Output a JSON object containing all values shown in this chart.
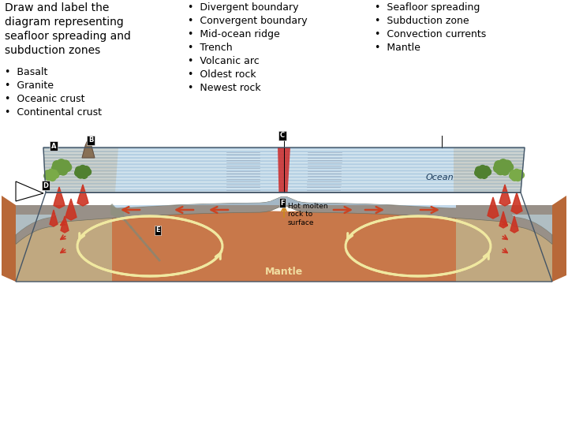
{
  "bg_color": "#ffffff",
  "title_text": "Draw and label the\ndiagram representing\nseafloor spreading and\nsubduction zones",
  "col1_bullets": [
    "Basalt",
    "Granite",
    "Oceanic crust",
    "Continental crust"
  ],
  "col2_bullets": [
    "Divergent boundary",
    "Convergent boundary",
    "Mid-ocean ridge",
    "Trench",
    "Volcanic arc",
    "Oldest rock",
    "Newest rock"
  ],
  "col3_bullets": [
    "Seafloor spreading",
    "Subduction zone",
    "Convection currents",
    "Mantle"
  ],
  "font_size_title": 10,
  "font_size_bullets": 9,
  "text_color": "#000000",
  "mantle_color": "#c8784a",
  "crust_color": "#a8a090",
  "ocean_color_light": "#b8d4e8",
  "ocean_color_dark": "#7aaec8",
  "continent_color": "#c8a878",
  "green_color": "#6a9a40",
  "red_arrow_color": "#cc4422",
  "white_arrow_color": "#f0e8a0",
  "ridge_color": "#cc2222"
}
